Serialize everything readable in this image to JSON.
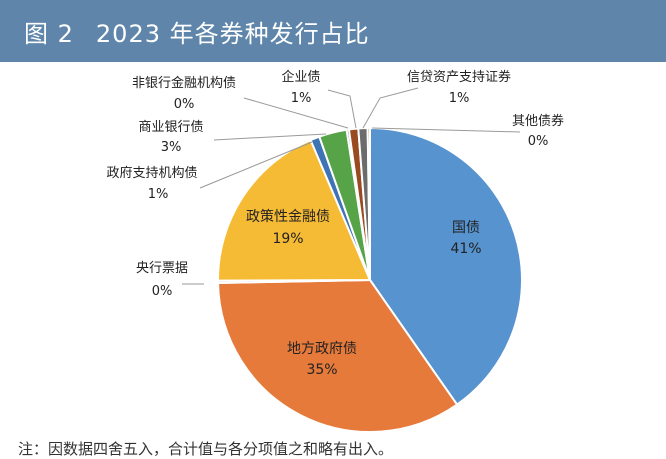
{
  "figure": {
    "number": "图 2",
    "title": "2023 年各券种发行占比",
    "footnote": "注：因数据四舍五入，合计值与各分项值之和略有出入。"
  },
  "chart_data": {
    "type": "pie",
    "title": "2023 年各券种发行占比",
    "slices": [
      {
        "name": "国债",
        "value": 41,
        "label": "41%",
        "color": "#5793cf"
      },
      {
        "name": "地方政府债",
        "value": 35,
        "label": "35%",
        "color": "#e67a3b"
      },
      {
        "name": "央行票据",
        "value": 0,
        "label": "0%",
        "color": "#b0b0b0"
      },
      {
        "name": "政策性金融债",
        "value": 19,
        "label": "19%",
        "color": "#f6bb35"
      },
      {
        "name": "政府支持机构债",
        "value": 1,
        "label": "1%",
        "color": "#3e73b4"
      },
      {
        "name": "商业银行债",
        "value": 3,
        "label": "3%",
        "color": "#56a447"
      },
      {
        "name": "非银行金融机构债",
        "value": 0,
        "label": "0%",
        "color": "#1f3f6a"
      },
      {
        "name": "企业债",
        "value": 1,
        "label": "1%",
        "color": "#9a4a20"
      },
      {
        "name": "信贷资产支持证券",
        "value": 1,
        "label": "1%",
        "color": "#6c6c6c"
      },
      {
        "name": "其他债券",
        "value": 0,
        "label": "0%",
        "color": "#a8862a"
      }
    ],
    "legend": "none"
  }
}
